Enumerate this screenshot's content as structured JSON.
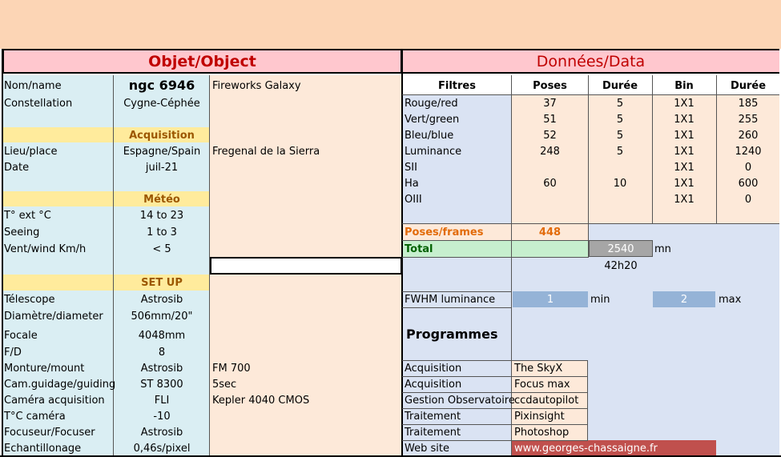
{
  "colors": {
    "banner": "#fcd5b5",
    "header_pink": "#ffc7ce",
    "title_red": "#c00000",
    "label_blue": "#daeef3",
    "values_peach": "#fde9d9",
    "section_yellow": "#ffeb9c",
    "section_text": "#9c5700",
    "filters_blue": "#dae3f3",
    "green": "#c6efce",
    "green_text": "#006100",
    "orange_text": "#e26b0a",
    "grey_box": "#a6a6a6",
    "fwhm_blue": "#95b3d7",
    "web_red": "#c0504d"
  },
  "left": {
    "title": "Objet/Object",
    "rows": [
      {
        "label": "Nom/name",
        "value": "ngc 6946",
        "extra": "Fireworks Galaxy"
      },
      {
        "label": "Constellation",
        "value": "Cygne-Céphée",
        "extra": ""
      },
      {
        "label": "",
        "value": "Acquisition",
        "extra": ""
      },
      {
        "label": "Lieu/place",
        "value": "Espagne/Spain",
        "extra": "Fregenal de la Sierra"
      },
      {
        "label": "Date",
        "value": "juil-21",
        "extra": ""
      },
      {
        "label": "",
        "value": "Météo",
        "extra": ""
      },
      {
        "label": "T° ext °C",
        "value": "14 to 23",
        "extra": ""
      },
      {
        "label": "Seeing",
        "value": "1 to 3",
        "extra": ""
      },
      {
        "label": "Vent/wind  Km/h",
        "value": "< 5",
        "extra": ""
      },
      {
        "label": "",
        "value": "SET UP",
        "extra": ""
      },
      {
        "label": "Télescope",
        "value": "Astrosib",
        "extra": ""
      },
      {
        "label": "Diamètre/diameter",
        "value": "506mm/20\"",
        "extra": ""
      },
      {
        "label": "Focale",
        "value": "4048mm",
        "extra": ""
      },
      {
        "label": "F/D",
        "value": "8",
        "extra": ""
      },
      {
        "label": "Monture/mount",
        "value": "Astrosib",
        "extra": "FM 700"
      },
      {
        "label": "Cam.guidage/guiding",
        "value": "ST 8300",
        "extra": "5sec"
      },
      {
        "label": "Caméra acquisition",
        "value": "FLI",
        "extra": "Kepler 4040 CMOS"
      },
      {
        "label": "T°C caméra",
        "value": "-10",
        "extra": ""
      },
      {
        "label": "Focuseur/Focuser",
        "value": "Astrosib",
        "extra": ""
      },
      {
        "label": "Echantillonage",
        "value": "0,46s/pixel",
        "extra": ""
      }
    ]
  },
  "right": {
    "title": "Données/Data",
    "headers": [
      "Filtres",
      "Poses",
      "Durée",
      "Bin",
      "Durée"
    ],
    "filters": [
      {
        "name": "Rouge/red",
        "poses": "37",
        "duree": "5",
        "bin": "1X1",
        "total": "185"
      },
      {
        "name": "Vert/green",
        "poses": "51",
        "duree": "5",
        "bin": "1X1",
        "total": "255"
      },
      {
        "name": "Bleu/blue",
        "poses": "52",
        "duree": "5",
        "bin": "1X1",
        "total": "260"
      },
      {
        "name": "Luminance",
        "poses": "248",
        "duree": "5",
        "bin": "1X1",
        "total": "1240"
      },
      {
        "name": "SII",
        "poses": "",
        "duree": "",
        "bin": "1X1",
        "total": "0"
      },
      {
        "name": "Ha",
        "poses": "60",
        "duree": "10",
        "bin": "1X1",
        "total": "600"
      },
      {
        "name": "OIII",
        "poses": "",
        "duree": "",
        "bin": "1X1",
        "total": "0"
      }
    ],
    "poses_frames_label": "Poses/frames",
    "poses_frames_value": "448",
    "total_label": "Total",
    "total_value": "2540",
    "total_unit": "mn",
    "total_hours": "42h20",
    "fwhm_label": "FWHM luminance",
    "fwhm_min": "1",
    "fwhm_min_label": "min",
    "fwhm_max": "2",
    "fwhm_max_label": "max",
    "programmes_title": "Programmes",
    "programmes": [
      {
        "task": "Acquisition",
        "software": "The SkyX"
      },
      {
        "task": "Acquisition",
        "software": "Focus max"
      },
      {
        "task": "Gestion Observatoire",
        "software": "ccdautopilot"
      },
      {
        "task": "Traitement",
        "software": "Pixinsight"
      },
      {
        "task": "Traitement",
        "software": "Photoshop"
      }
    ],
    "website_label": "Web site",
    "website_url": "www.georges-chassaigne.fr"
  }
}
